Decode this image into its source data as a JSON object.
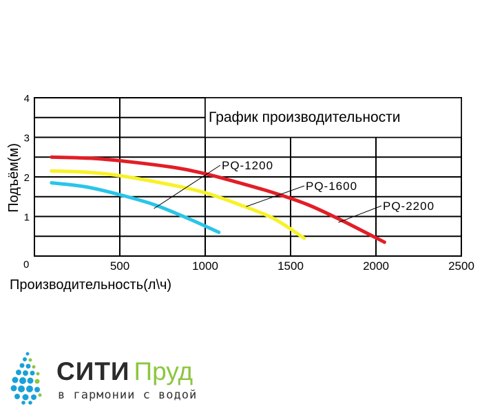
{
  "chart_data": {
    "type": "line",
    "title": "График производительности",
    "xlabel": "Производительность(л\\ч)",
    "ylabel": "Подъём(м)",
    "xlim": [
      0,
      2500
    ],
    "ylim": [
      0,
      4
    ],
    "x_ticks": [
      "0",
      "500",
      "1000",
      "1500",
      "2000",
      "2500"
    ],
    "y_ticks": [
      "1",
      "2",
      "3",
      "4"
    ],
    "grid": true,
    "series": [
      {
        "name": "PQ-1200",
        "color": "#29c5e8",
        "x": [
          100,
          300,
          500,
          700,
          900,
          1080
        ],
        "y": [
          1.85,
          1.75,
          1.55,
          1.3,
          0.95,
          0.6
        ]
      },
      {
        "name": "PQ-1600",
        "color": "#f7f227",
        "x": [
          100,
          300,
          500,
          800,
          1000,
          1200,
          1400,
          1580
        ],
        "y": [
          2.15,
          2.12,
          2.03,
          1.8,
          1.6,
          1.3,
          0.95,
          0.45
        ]
      },
      {
        "name": "PQ-2200",
        "color": "#e21e26",
        "x": [
          100,
          400,
          800,
          1000,
          1200,
          1400,
          1600,
          1800,
          2050
        ],
        "y": [
          2.5,
          2.45,
          2.25,
          2.08,
          1.85,
          1.6,
          1.3,
          0.9,
          0.35
        ]
      }
    ],
    "annotations": [
      {
        "label": "PQ-1200",
        "x": 700,
        "y": 1.2
      },
      {
        "label": "PQ-1600",
        "x": 1240,
        "y": 1.25
      },
      {
        "label": "PQ-2200",
        "x": 1780,
        "y": 0.85
      }
    ]
  },
  "brand": {
    "name_part1": "СИТИ",
    "name_part2": "Пруд",
    "tagline": "в гармонии с водой",
    "logo_icon": "water-drop-dots-icon",
    "colors": {
      "dark": "#2b2b2b",
      "green": "#8cc63f",
      "blue": "#1aa0d8"
    }
  }
}
